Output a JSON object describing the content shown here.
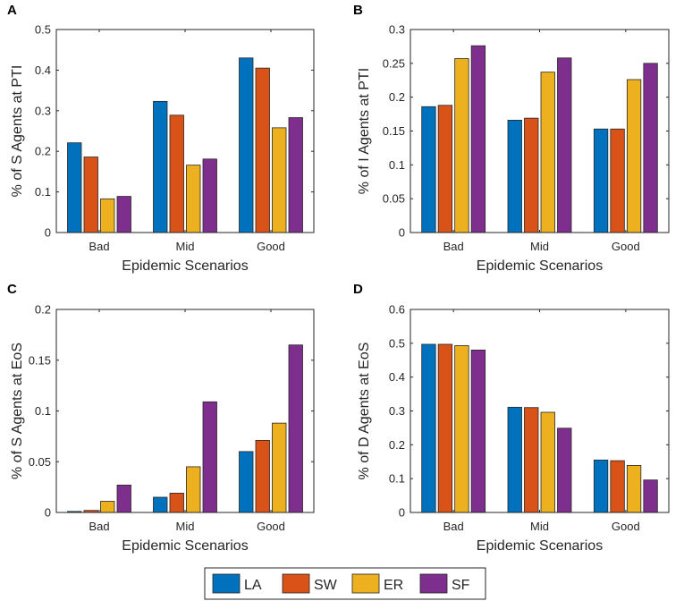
{
  "chart_data": [
    {
      "type": "bar",
      "panel": "A",
      "categories": [
        "Bad",
        "Mid",
        "Good"
      ],
      "series": [
        {
          "name": "LA",
          "values": [
            0.221,
            0.323,
            0.43
          ]
        },
        {
          "name": "SW",
          "values": [
            0.186,
            0.289,
            0.405
          ]
        },
        {
          "name": "ER",
          "values": [
            0.083,
            0.166,
            0.258
          ]
        },
        {
          "name": "SF",
          "values": [
            0.089,
            0.181,
            0.283
          ]
        }
      ],
      "xlabel": "Epidemic Scenarios",
      "ylabel": "% of S Agents at PTI",
      "ylim": [
        0,
        0.5
      ],
      "yticks": [
        0,
        0.1,
        0.2,
        0.3,
        0.4,
        0.5
      ],
      "ytick_labels": [
        "0",
        "0.1",
        "0.2",
        "0.3",
        "0.4",
        "0.5"
      ]
    },
    {
      "type": "bar",
      "panel": "B",
      "categories": [
        "Bad",
        "Mid",
        "Good"
      ],
      "series": [
        {
          "name": "LA",
          "values": [
            0.186,
            0.166,
            0.153
          ]
        },
        {
          "name": "SW",
          "values": [
            0.188,
            0.169,
            0.153
          ]
        },
        {
          "name": "ER",
          "values": [
            0.257,
            0.237,
            0.226
          ]
        },
        {
          "name": "SF",
          "values": [
            0.276,
            0.258,
            0.25
          ]
        }
      ],
      "xlabel": "Epidemic Scenarios",
      "ylabel": "% of I Agents at PTI",
      "ylim": [
        0,
        0.3
      ],
      "yticks": [
        0,
        0.05,
        0.1,
        0.15,
        0.2,
        0.25,
        0.3
      ],
      "ytick_labels": [
        "0",
        "0.05",
        "0.1",
        "0.15",
        "0.2",
        "0.25",
        "0.3"
      ]
    },
    {
      "type": "bar",
      "panel": "C",
      "categories": [
        "Bad",
        "Mid",
        "Good"
      ],
      "series": [
        {
          "name": "LA",
          "values": [
            0.001,
            0.015,
            0.06
          ]
        },
        {
          "name": "SW",
          "values": [
            0.002,
            0.019,
            0.071
          ]
        },
        {
          "name": "ER",
          "values": [
            0.011,
            0.045,
            0.088
          ]
        },
        {
          "name": "SF",
          "values": [
            0.027,
            0.109,
            0.165
          ]
        }
      ],
      "xlabel": "Epidemic Scenarios",
      "ylabel": "% of S Agents at EoS",
      "ylim": [
        0,
        0.2
      ],
      "yticks": [
        0,
        0.05,
        0.1,
        0.15,
        0.2
      ],
      "ytick_labels": [
        "0",
        "0.05",
        "0.1",
        "0.15",
        "0.2"
      ]
    },
    {
      "type": "bar",
      "panel": "D",
      "categories": [
        "Bad",
        "Mid",
        "Good"
      ],
      "series": [
        {
          "name": "LA",
          "values": [
            0.497,
            0.311,
            0.155
          ]
        },
        {
          "name": "SW",
          "values": [
            0.497,
            0.31,
            0.153
          ]
        },
        {
          "name": "ER",
          "values": [
            0.493,
            0.296,
            0.139
          ]
        },
        {
          "name": "SF",
          "values": [
            0.48,
            0.249,
            0.096
          ]
        }
      ],
      "xlabel": "Epidemic Scenarios",
      "ylabel": "% of D Agents at EoS",
      "ylim": [
        0,
        0.6
      ],
      "yticks": [
        0,
        0.1,
        0.2,
        0.3,
        0.4,
        0.5,
        0.6
      ],
      "ytick_labels": [
        "0",
        "0.1",
        "0.2",
        "0.3",
        "0.4",
        "0.5",
        "0.6"
      ]
    }
  ],
  "legend": {
    "placement": "bottom-center",
    "entries": [
      {
        "name": "LA",
        "color": "#0072BD"
      },
      {
        "name": "SW",
        "color": "#D95319"
      },
      {
        "name": "ER",
        "color": "#EDB120"
      },
      {
        "name": "SF",
        "color": "#7E2F8E"
      }
    ]
  }
}
